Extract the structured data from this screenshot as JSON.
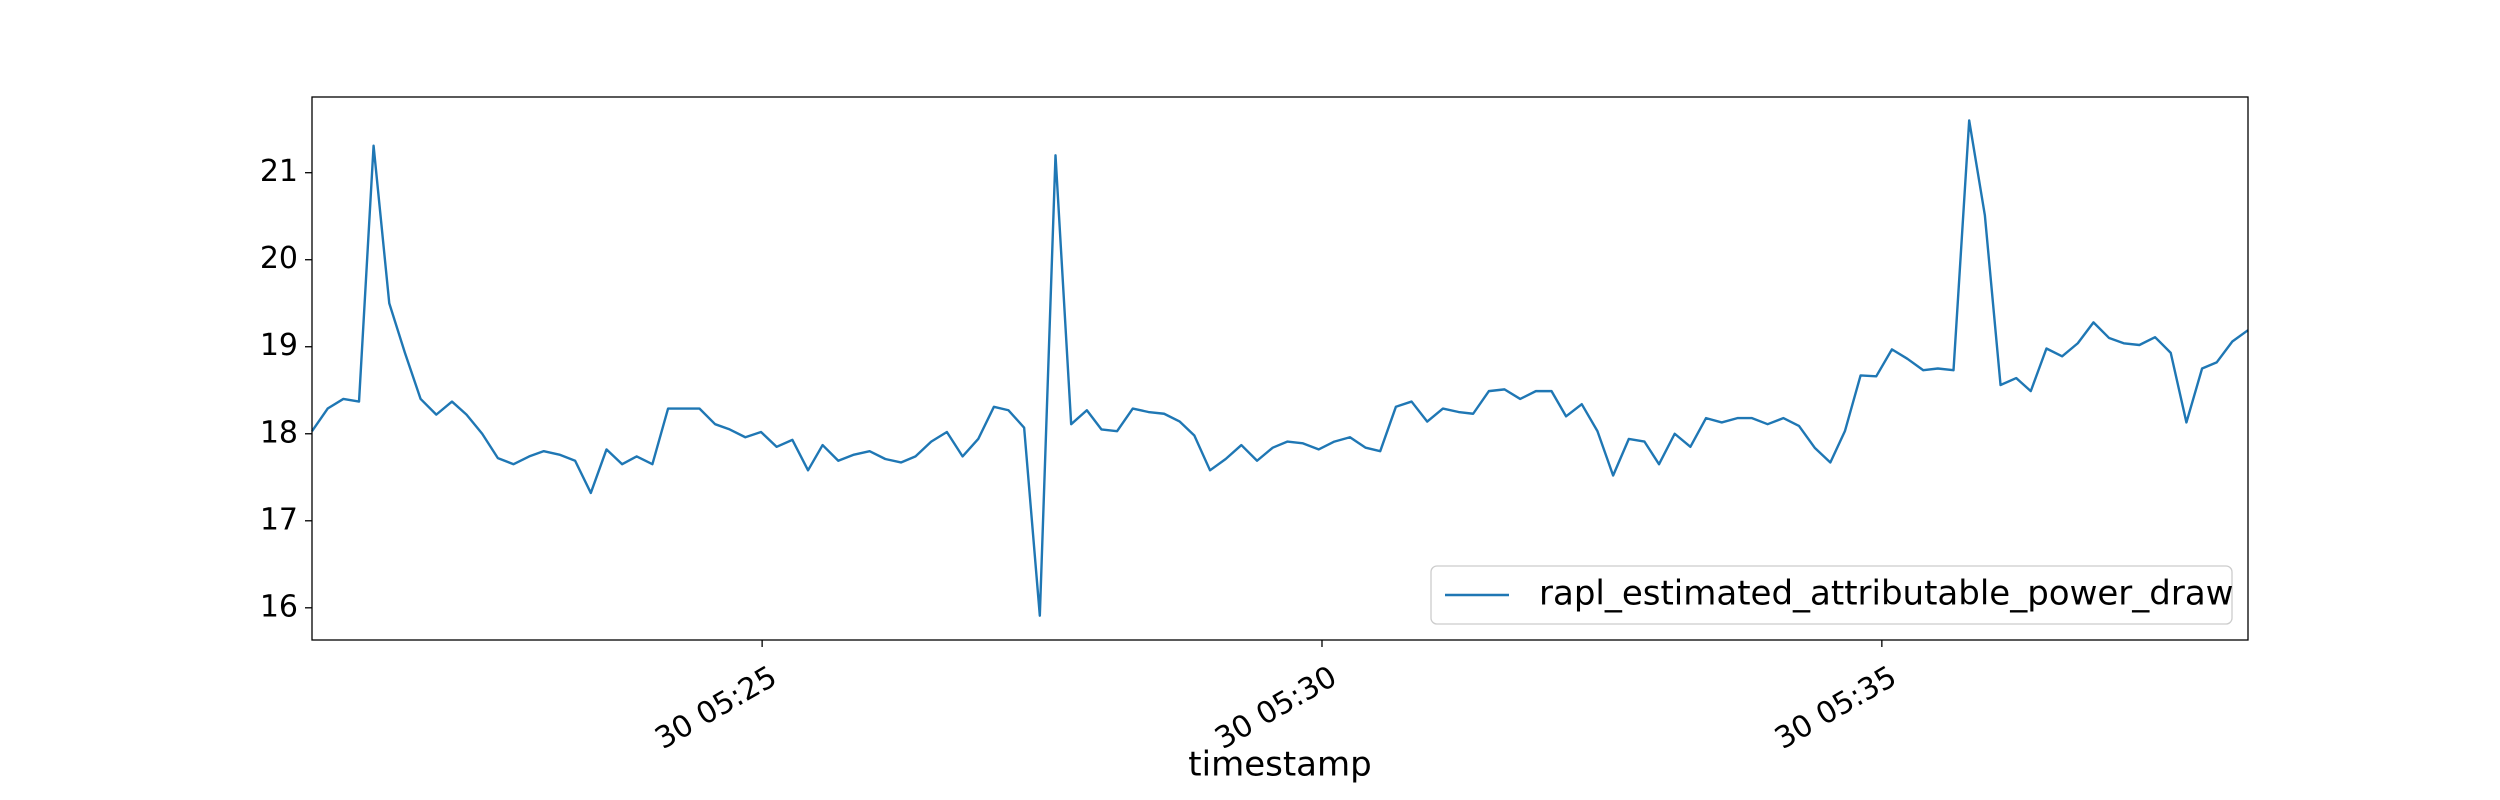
{
  "chart_data": {
    "type": "line",
    "xlabel": "timestamp",
    "x": [
      20.98,
      21.12,
      21.26,
      21.4,
      21.53,
      21.67,
      21.81,
      21.95,
      22.09,
      22.23,
      22.36,
      22.5,
      22.64,
      22.78,
      22.92,
      23.05,
      23.19,
      23.33,
      23.47,
      23.61,
      23.75,
      23.88,
      24.02,
      24.16,
      24.3,
      24.44,
      24.58,
      24.71,
      24.85,
      24.99,
      25.13,
      25.27,
      25.41,
      25.54,
      25.68,
      25.82,
      25.96,
      26.1,
      26.24,
      26.37,
      26.51,
      26.65,
      26.79,
      26.93,
      27.07,
      27.2,
      27.34,
      27.48,
      27.62,
      27.76,
      27.9,
      28.03,
      28.17,
      28.31,
      28.45,
      28.59,
      28.73,
      28.86,
      29.0,
      29.14,
      29.28,
      29.42,
      29.56,
      29.69,
      29.83,
      29.97,
      30.11,
      30.25,
      30.39,
      30.52,
      30.66,
      30.8,
      30.94,
      31.08,
      31.22,
      31.35,
      31.49,
      31.63,
      31.77,
      31.91,
      32.05,
      32.18,
      32.32,
      32.46,
      32.6,
      32.74,
      32.88,
      33.01,
      33.15,
      33.29,
      33.43,
      33.57,
      33.71,
      33.84,
      33.98,
      34.12,
      34.26,
      34.4,
      34.54,
      34.67,
      34.81,
      34.95,
      35.09,
      35.23,
      35.37,
      35.5,
      35.64,
      35.78,
      35.92,
      36.06,
      36.2,
      36.33,
      36.47,
      36.61,
      36.75,
      36.89,
      37.03,
      37.16,
      37.3,
      37.44,
      37.58,
      37.72,
      37.86,
      37.99,
      38.13,
      38.27
    ],
    "series": [
      {
        "name": "rapl_estimated_attributable_power_draw",
        "color": "#1f77b4",
        "values": [
          18.03,
          18.29,
          18.4,
          18.37,
          21.31,
          19.5,
          18.93,
          18.4,
          18.22,
          18.37,
          18.22,
          18.0,
          17.72,
          17.65,
          17.74,
          17.8,
          17.76,
          17.69,
          17.32,
          17.82,
          17.65,
          17.74,
          17.65,
          18.29,
          18.29,
          18.29,
          18.11,
          18.05,
          17.96,
          18.02,
          17.85,
          17.93,
          17.58,
          17.87,
          17.69,
          17.76,
          17.8,
          17.71,
          17.67,
          17.74,
          17.91,
          18.02,
          17.74,
          17.94,
          18.31,
          18.27,
          18.07,
          15.91,
          21.2,
          18.11,
          18.27,
          18.05,
          18.03,
          18.29,
          18.25,
          18.23,
          18.14,
          17.98,
          17.58,
          17.71,
          17.87,
          17.69,
          17.84,
          17.91,
          17.89,
          17.82,
          17.91,
          17.96,
          17.84,
          17.8,
          18.31,
          18.37,
          18.14,
          18.29,
          18.25,
          18.23,
          18.49,
          18.51,
          18.4,
          18.49,
          18.49,
          18.2,
          18.34,
          18.03,
          17.52,
          17.94,
          17.91,
          17.65,
          18.0,
          17.85,
          18.18,
          18.13,
          18.18,
          18.18,
          18.11,
          18.18,
          18.09,
          17.84,
          17.67,
          18.03,
          18.67,
          18.66,
          18.97,
          18.86,
          18.73,
          18.75,
          18.73,
          21.6,
          20.51,
          18.56,
          18.64,
          18.49,
          18.98,
          18.89,
          19.04,
          19.28,
          19.1,
          19.04,
          19.02,
          19.11,
          18.93,
          18.13,
          18.75,
          18.82,
          19.06,
          19.19
        ]
      }
    ],
    "xlim": [
      20.98,
      38.27
    ],
    "xticks": [
      {
        "value": 25,
        "label": "30 05:25"
      },
      {
        "value": 30,
        "label": "30 05:30"
      },
      {
        "value": 35,
        "label": "30 05:35"
      }
    ],
    "ylim": [
      15.63,
      21.87
    ],
    "yticks": [
      16,
      17,
      18,
      19,
      20,
      21
    ],
    "grid": false,
    "legend": "lower right"
  }
}
